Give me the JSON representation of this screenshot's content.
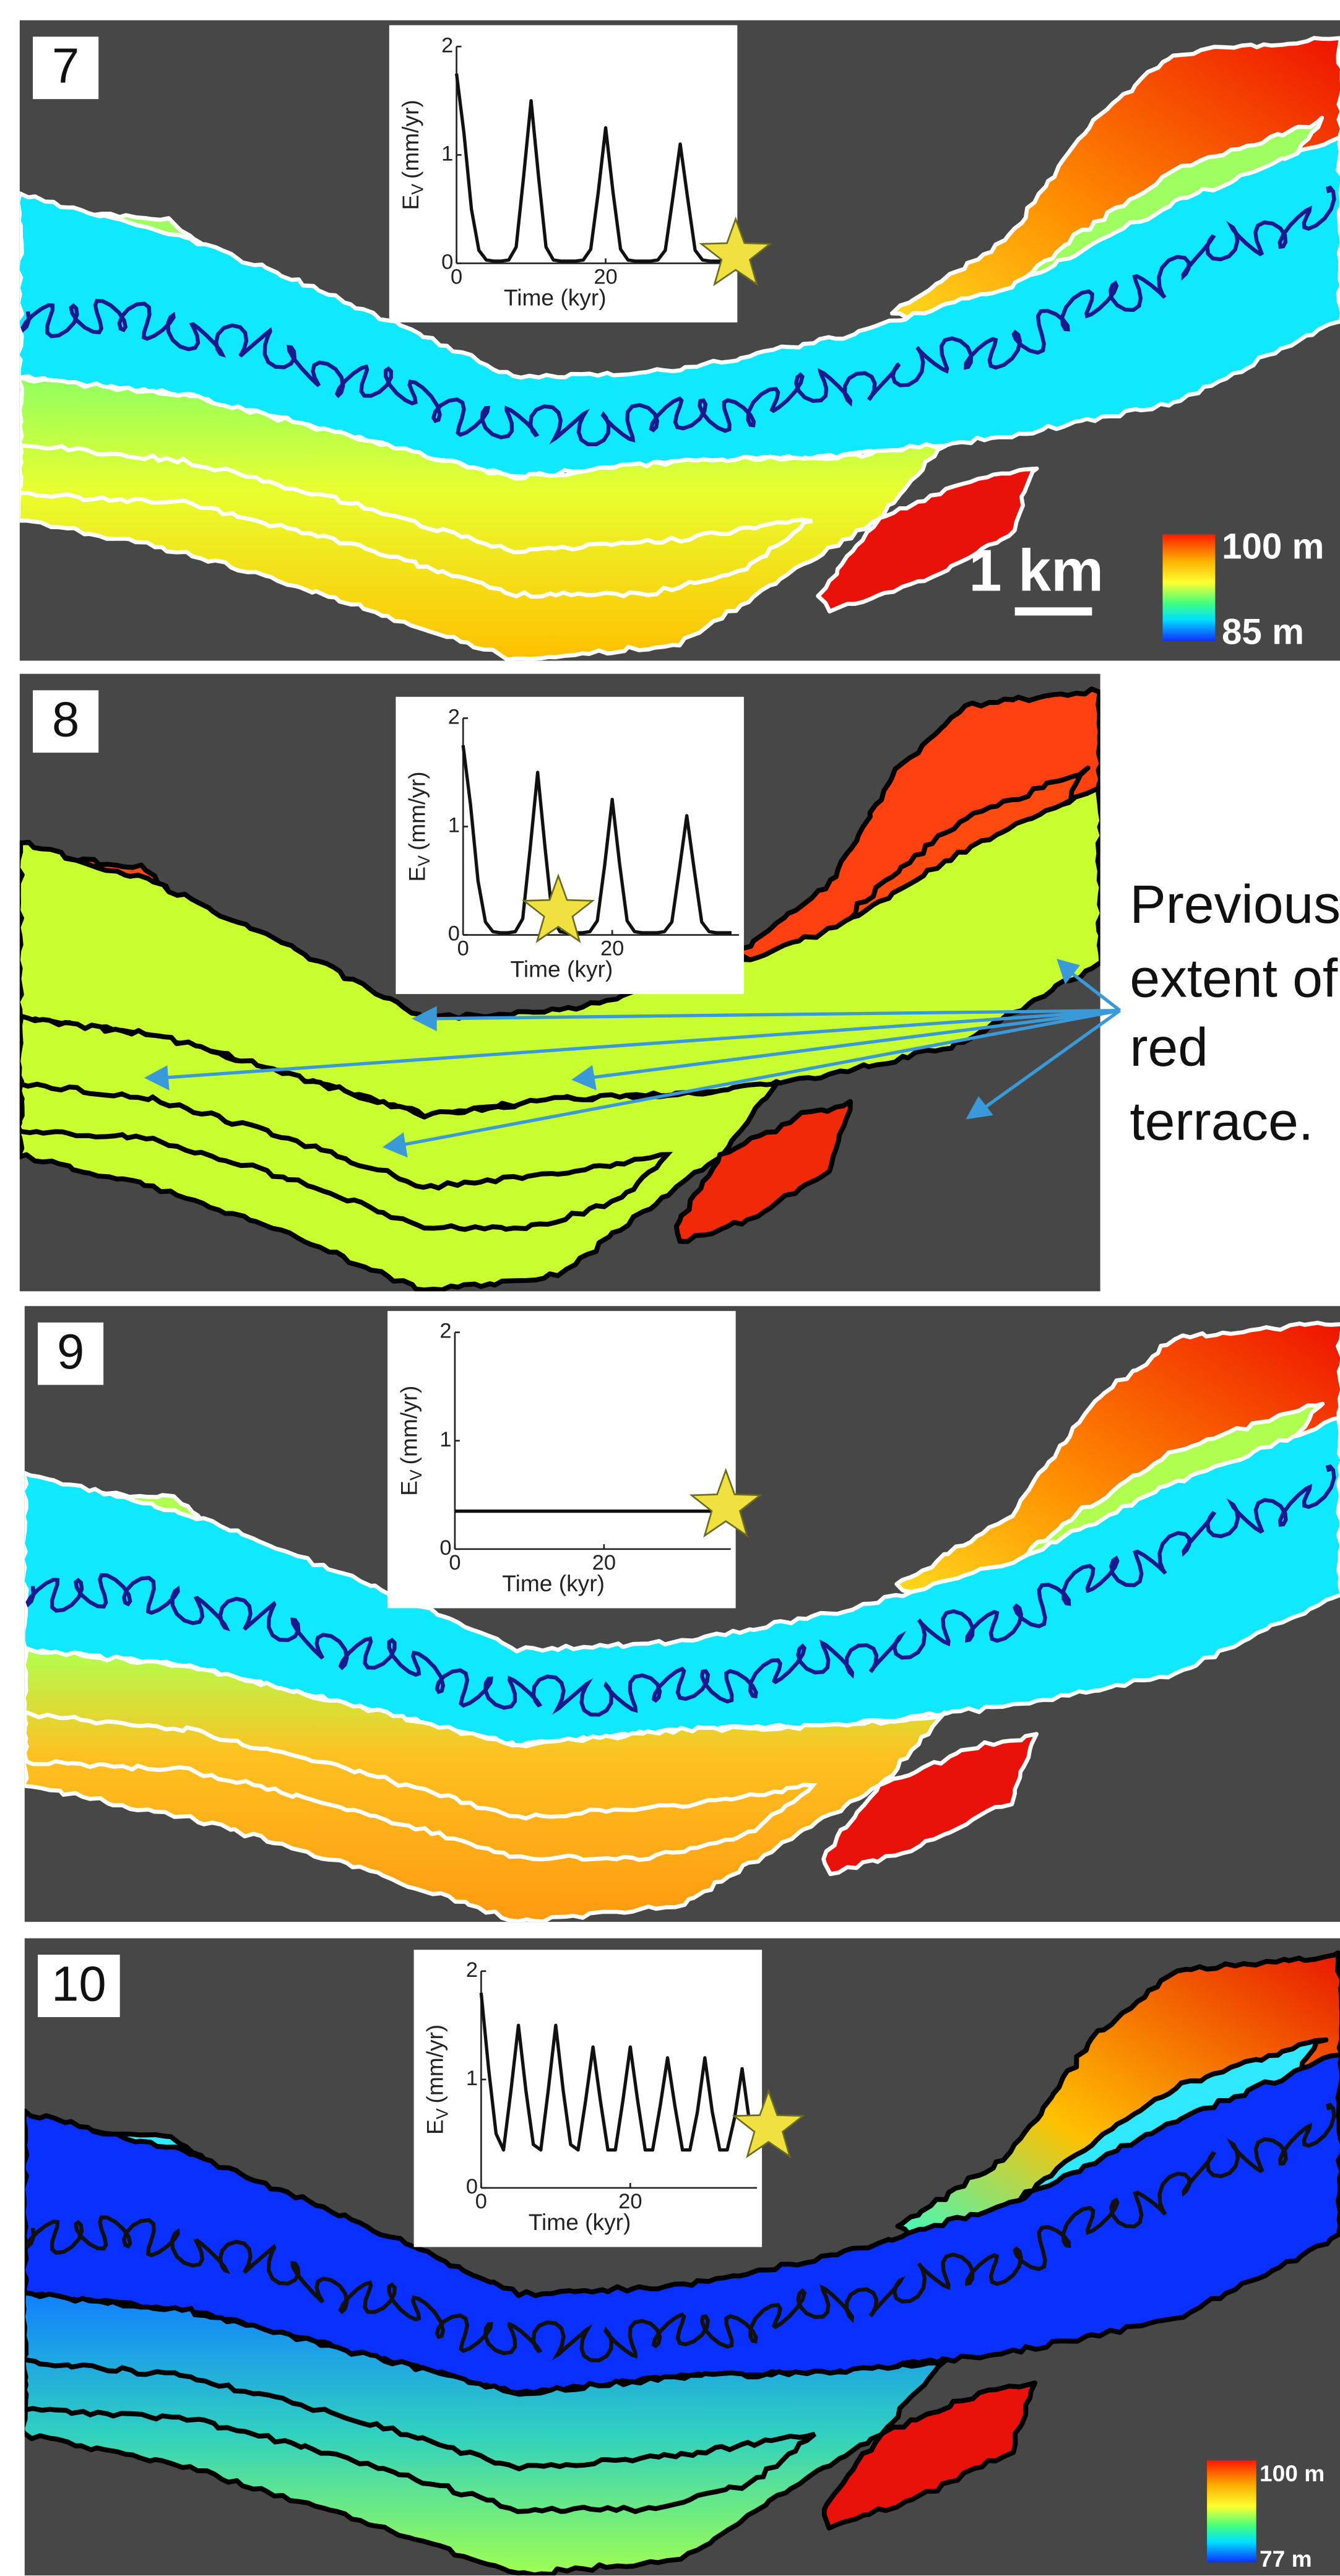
{
  "panel_labels": [
    "7",
    "8",
    "9",
    "10"
  ],
  "chart_data": [
    {
      "type": "line",
      "xlabel": "Time (kyr)",
      "ylabel": {
        "symbol": "E",
        "subscript": "V",
        "unit": "(mm/yr)"
      },
      "xlim": [
        0,
        37
      ],
      "ylim": [
        0,
        2
      ],
      "xticks": [
        0,
        20
      ],
      "yticks": [
        0,
        1,
        2
      ],
      "series": [
        {
          "color": "#111111",
          "x": [
            0,
            1,
            2,
            3,
            4,
            5,
            6,
            7,
            8,
            9,
            10,
            11,
            12,
            13,
            14,
            15,
            16,
            17,
            18,
            19,
            20,
            21,
            22,
            23,
            24,
            25,
            26,
            27,
            28,
            29,
            30,
            31,
            32,
            33,
            34,
            35,
            36
          ],
          "values": [
            1.75,
            1.2,
            0.5,
            0.12,
            0.03,
            0.02,
            0.02,
            0.03,
            0.15,
            0.8,
            1.5,
            0.8,
            0.15,
            0.03,
            0.02,
            0.02,
            0.02,
            0.03,
            0.13,
            0.65,
            1.25,
            0.65,
            0.13,
            0.03,
            0.02,
            0.02,
            0.02,
            0.03,
            0.12,
            0.6,
            1.1,
            0.6,
            0.12,
            0.03,
            0.02,
            0.02,
            0.02
          ]
        }
      ]
    },
    {
      "type": "line",
      "xlabel": "Time (kyr)",
      "ylabel": {
        "symbol": "E",
        "subscript": "V",
        "unit": "(mm/yr)"
      },
      "xlim": [
        0,
        37
      ],
      "ylim": [
        0,
        2
      ],
      "xticks": [
        0,
        20
      ],
      "yticks": [
        0,
        1,
        2
      ],
      "series": [
        {
          "color": "#111111",
          "x": [
            0,
            1,
            2,
            3,
            4,
            5,
            6,
            7,
            8,
            9,
            10,
            11,
            12,
            13,
            14,
            15,
            16,
            17,
            18,
            19,
            20,
            21,
            22,
            23,
            24,
            25,
            26,
            27,
            28,
            29,
            30,
            31,
            32,
            33,
            34,
            35,
            36
          ],
          "values": [
            1.75,
            1.2,
            0.5,
            0.12,
            0.03,
            0.02,
            0.02,
            0.03,
            0.15,
            0.8,
            1.5,
            0.8,
            0.15,
            0.03,
            0.02,
            0.02,
            0.02,
            0.03,
            0.13,
            0.65,
            1.25,
            0.65,
            0.13,
            0.03,
            0.02,
            0.02,
            0.02,
            0.03,
            0.12,
            0.6,
            1.1,
            0.6,
            0.12,
            0.03,
            0.02,
            0.02,
            0.02
          ]
        }
      ]
    },
    {
      "type": "line",
      "xlabel": "Time (kyr)",
      "ylabel": {
        "symbol": "E",
        "subscript": "V",
        "unit": "(mm/yr)"
      },
      "xlim": [
        0,
        37
      ],
      "ylim": [
        0,
        2
      ],
      "xticks": [
        0,
        20
      ],
      "yticks": [
        0,
        1,
        2
      ],
      "series": [
        {
          "color": "#111111",
          "x": [
            0,
            36
          ],
          "values": [
            0.35,
            0.35
          ]
        }
      ]
    },
    {
      "type": "line",
      "xlabel": "Time (kyr)",
      "ylabel": {
        "symbol": "E",
        "subscript": "V",
        "unit": "(mm/yr)"
      },
      "xlim": [
        0,
        37
      ],
      "ylim": [
        0,
        2
      ],
      "xticks": [
        0,
        20
      ],
      "yticks": [
        0,
        1,
        2
      ],
      "series": [
        {
          "color": "#111111",
          "x": [
            0,
            1,
            2,
            3,
            4,
            5,
            6,
            7,
            8,
            9,
            10,
            11,
            12,
            13,
            14,
            15,
            16,
            17,
            18,
            19,
            20,
            21,
            22,
            23,
            24,
            25,
            26,
            27,
            28,
            29,
            30,
            31,
            32,
            33,
            34,
            35,
            36
          ],
          "values": [
            1.8,
            1.1,
            0.5,
            0.35,
            0.9,
            1.5,
            0.9,
            0.4,
            0.35,
            0.9,
            1.5,
            0.9,
            0.4,
            0.35,
            0.8,
            1.3,
            0.8,
            0.35,
            0.35,
            0.8,
            1.3,
            0.8,
            0.35,
            0.35,
            0.75,
            1.2,
            0.75,
            0.35,
            0.35,
            0.7,
            1.2,
            0.7,
            0.35,
            0.35,
            0.65,
            1.1,
            0.6
          ]
        }
      ]
    }
  ],
  "scale_bar": "1 km",
  "colorbars": [
    {
      "max": "100 m",
      "min": "85 m"
    },
    {
      "max": "100 m",
      "min": "77 m"
    }
  ],
  "annotation": [
    "Previous",
    "extent of",
    "red",
    "terrace."
  ]
}
